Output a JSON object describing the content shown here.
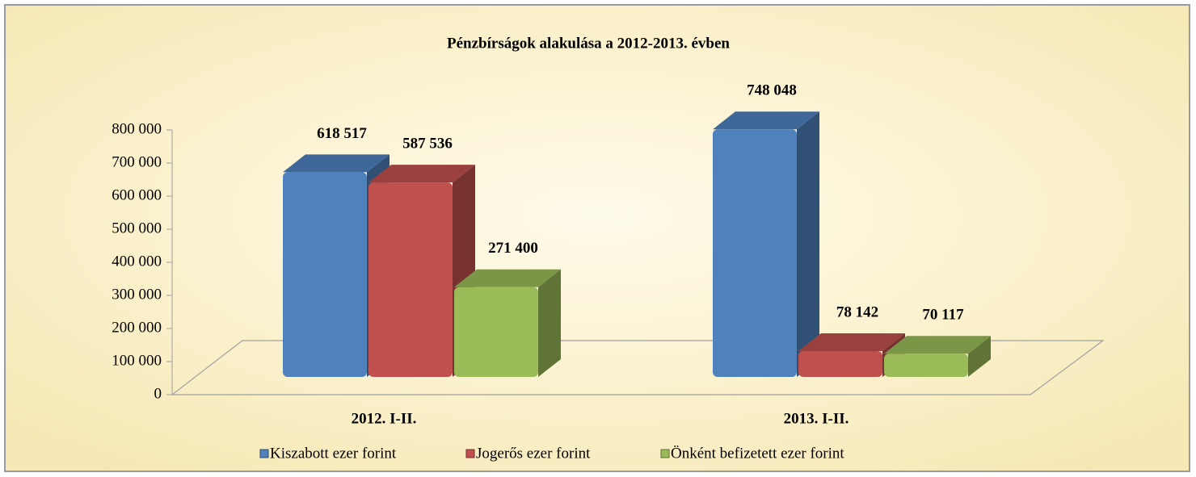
{
  "chart_data": {
    "type": "bar3d",
    "title": "Pénzbírságok alakulása a 2012-2013. évben",
    "categories": [
      "2012. I-II.",
      "2013. I-II."
    ],
    "series": [
      {
        "name": "Kiszabott ezer forint",
        "color": "#4f81bd",
        "values": [
          618517,
          748048
        ],
        "value_labels": [
          "618 517",
          "748 048"
        ]
      },
      {
        "name": "Jogerős ezer forint",
        "color": "#c0504d",
        "values": [
          587536,
          78142
        ],
        "value_labels": [
          "587 536",
          "78 142"
        ]
      },
      {
        "name": "Önként befizetett ezer forint",
        "color": "#9bbb59",
        "values": [
          271400,
          70117
        ],
        "value_labels": [
          "271 400",
          "70 117"
        ]
      }
    ],
    "ylim": [
      0,
      800000
    ],
    "yticks": [
      0,
      {
        "value": 100000,
        "label": "100 000"
      },
      {
        "value": 200000,
        "label": "200 000"
      },
      {
        "value": 300000,
        "label": "300 000"
      },
      {
        "value": 400000,
        "label": "400 000"
      },
      {
        "value": 500000,
        "label": "500 000"
      },
      {
        "value": 600000,
        "label": "600 000"
      },
      {
        "value": 700000,
        "label": "700 000"
      },
      {
        "value": 800000,
        "label": "800 000"
      }
    ],
    "legend": "bottom"
  }
}
